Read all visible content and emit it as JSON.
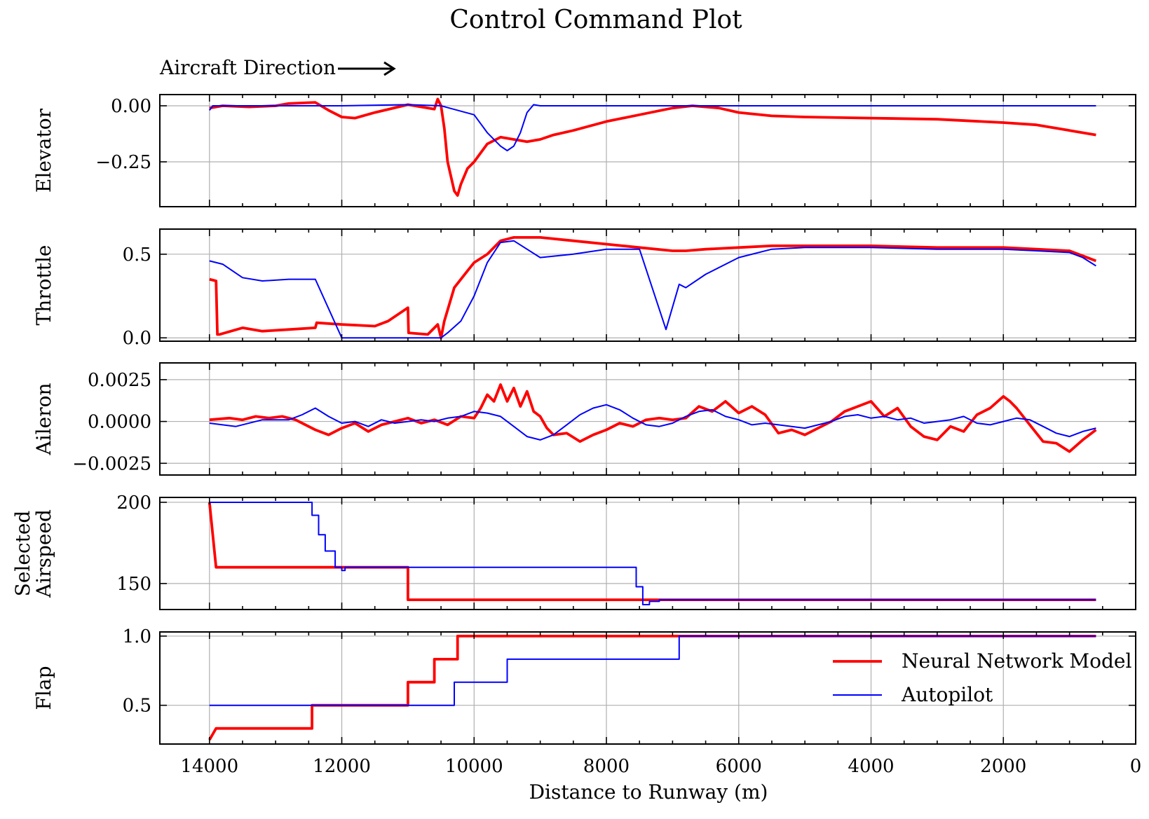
{
  "title": "Control Command Plot",
  "annotation": {
    "text": "Aircraft Direction",
    "arrow": "right-arrow"
  },
  "xlabel": "Distance to Runway (m)",
  "x_ticks": [
    14000,
    12000,
    10000,
    8000,
    6000,
    4000,
    2000,
    0
  ],
  "x_range": [
    14750,
    0
  ],
  "legend": {
    "placement": "lower-right of last panel",
    "entries": [
      {
        "name": "Neural Network Model",
        "color": "#ff0000"
      },
      {
        "name": "Autopilot",
        "color": "#0000ff"
      }
    ]
  },
  "chart_data": [
    {
      "type": "line",
      "ylabel": "Elevator",
      "ylim": [
        -0.45,
        0.05
      ],
      "y_ticks": [
        0.0,
        -0.25
      ],
      "y_tick_labels": [
        "0.00",
        "−0.25"
      ],
      "grid": true,
      "series": [
        {
          "name": "Neural Network Model",
          "color": "#ff0000",
          "x": [
            14000,
            13800,
            13400,
            13000,
            12800,
            12400,
            12200,
            12000,
            11800,
            11500,
            11000,
            10600,
            10550,
            10500,
            10450,
            10400,
            10300,
            10250,
            10200,
            10100,
            10000,
            9800,
            9600,
            9400,
            9200,
            9000,
            8800,
            8500,
            8000,
            7500,
            7000,
            6700,
            6500,
            6300,
            6000,
            5500,
            5000,
            4000,
            3000,
            2000,
            1500,
            1000,
            600
          ],
          "y": [
            -0.01,
            0.0,
            -0.005,
            0.0,
            0.01,
            0.015,
            -0.02,
            -0.05,
            -0.055,
            -0.03,
            0.005,
            -0.015,
            0.03,
            0.0,
            -0.1,
            -0.25,
            -0.38,
            -0.4,
            -0.35,
            -0.28,
            -0.25,
            -0.17,
            -0.14,
            -0.15,
            -0.16,
            -0.15,
            -0.13,
            -0.11,
            -0.07,
            -0.04,
            -0.01,
            0.0,
            -0.005,
            -0.01,
            -0.03,
            -0.045,
            -0.05,
            -0.055,
            -0.06,
            -0.075,
            -0.085,
            -0.11,
            -0.13
          ]
        },
        {
          "name": "Autopilot",
          "color": "#0000ff",
          "x": [
            14000,
            13950,
            13800,
            13000,
            12000,
            11000,
            10500,
            10000,
            9800,
            9600,
            9500,
            9400,
            9300,
            9200,
            9100,
            9000,
            8000,
            7000,
            6000,
            5000,
            4000,
            3000,
            2000,
            1000,
            600
          ],
          "y": [
            -0.02,
            0.0,
            0.0,
            0.0,
            0.0,
            0.005,
            0.0,
            -0.04,
            -0.12,
            -0.18,
            -0.2,
            -0.18,
            -0.12,
            -0.03,
            0.005,
            0.0,
            0.0,
            0.0,
            0.0,
            0.0,
            0.0,
            0.0,
            0.0,
            0.0,
            0.0
          ]
        }
      ]
    },
    {
      "type": "line",
      "ylabel": "Throttle",
      "ylim": [
        -0.02,
        0.65
      ],
      "y_ticks": [
        0.0,
        0.5
      ],
      "y_tick_labels": [
        "0.0",
        "0.5"
      ],
      "grid": true,
      "series": [
        {
          "name": "Neural Network Model",
          "color": "#ff0000",
          "x": [
            14000,
            13900,
            13880,
            13850,
            13500,
            13200,
            12800,
            12400,
            12380,
            12000,
            11500,
            11300,
            11000,
            10990,
            10700,
            10550,
            10500,
            10450,
            10300,
            10100,
            10000,
            9800,
            9600,
            9400,
            9000,
            8500,
            8000,
            7500,
            7000,
            6800,
            6500,
            6000,
            5500,
            5000,
            4000,
            3000,
            2000,
            1500,
            1000,
            800,
            600
          ],
          "y": [
            0.35,
            0.34,
            0.02,
            0.02,
            0.06,
            0.04,
            0.05,
            0.06,
            0.09,
            0.08,
            0.07,
            0.1,
            0.18,
            0.03,
            0.02,
            0.08,
            0.0,
            0.1,
            0.3,
            0.4,
            0.45,
            0.5,
            0.58,
            0.6,
            0.6,
            0.58,
            0.56,
            0.54,
            0.52,
            0.52,
            0.53,
            0.54,
            0.55,
            0.55,
            0.55,
            0.54,
            0.54,
            0.53,
            0.52,
            0.49,
            0.46
          ]
        },
        {
          "name": "Autopilot",
          "color": "#0000ff",
          "x": [
            14000,
            13800,
            13500,
            13200,
            12800,
            12400,
            12000,
            11000,
            10500,
            10400,
            10200,
            10000,
            9800,
            9600,
            9400,
            9000,
            8500,
            8000,
            7500,
            7100,
            6900,
            6800,
            6500,
            6000,
            5500,
            5000,
            4000,
            3000,
            2000,
            1500,
            1000,
            800,
            600
          ],
          "y": [
            0.46,
            0.44,
            0.36,
            0.34,
            0.35,
            0.35,
            0.0,
            0.0,
            0.0,
            0.03,
            0.1,
            0.25,
            0.45,
            0.57,
            0.58,
            0.48,
            0.5,
            0.53,
            0.53,
            0.05,
            0.32,
            0.3,
            0.38,
            0.48,
            0.53,
            0.54,
            0.54,
            0.53,
            0.53,
            0.52,
            0.51,
            0.48,
            0.43
          ]
        }
      ]
    },
    {
      "type": "line",
      "ylabel": "Aileron",
      "ylim": [
        -0.0032,
        0.0035
      ],
      "y_ticks": [
        0.0025,
        0.0,
        -0.0025
      ],
      "y_tick_labels": [
        "0.0025",
        "0.0000",
        "−0.0025"
      ],
      "grid": true,
      "series": [
        {
          "name": "Neural Network Model",
          "color": "#ff0000",
          "x": [
            14000,
            13700,
            13500,
            13300,
            13100,
            12900,
            12700,
            12400,
            12200,
            12000,
            11800,
            11600,
            11400,
            11200,
            11000,
            10800,
            10600,
            10400,
            10200,
            10000,
            9900,
            9800,
            9700,
            9600,
            9500,
            9400,
            9300,
            9200,
            9100,
            9000,
            8900,
            8800,
            8600,
            8400,
            8200,
            8000,
            7800,
            7600,
            7400,
            7200,
            7000,
            6800,
            6600,
            6400,
            6200,
            6000,
            5800,
            5600,
            5400,
            5200,
            5000,
            4800,
            4600,
            4400,
            4200,
            4000,
            3800,
            3600,
            3400,
            3200,
            3000,
            2800,
            2600,
            2400,
            2200,
            2000,
            1900,
            1800,
            1600,
            1400,
            1200,
            1000,
            800,
            600
          ],
          "y": [
            0.0001,
            0.0002,
            0.0001,
            0.0003,
            0.0002,
            0.0003,
            0.0001,
            -0.0005,
            -0.0008,
            -0.0004,
            -0.0001,
            -0.0006,
            -0.0002,
            0.0,
            0.0002,
            -0.0001,
            0.0001,
            -0.0002,
            0.0003,
            0.0002,
            0.0008,
            0.0016,
            0.0012,
            0.0022,
            0.0012,
            0.002,
            0.0009,
            0.0018,
            0.0006,
            0.0003,
            -0.0004,
            -0.0008,
            -0.0007,
            -0.0012,
            -0.0008,
            -0.0005,
            -0.0001,
            -0.0003,
            0.0001,
            0.0002,
            0.0001,
            0.0002,
            0.0009,
            0.0006,
            0.0012,
            0.0005,
            0.0009,
            0.0004,
            -0.0007,
            -0.0005,
            -0.0008,
            -0.0004,
            0.0,
            0.0006,
            0.0009,
            0.0012,
            0.0003,
            0.0008,
            -0.0003,
            -0.0009,
            -0.0011,
            -0.0003,
            -0.0006,
            0.0004,
            0.0008,
            0.0015,
            0.0012,
            0.0008,
            -0.0002,
            -0.0012,
            -0.0013,
            -0.0018,
            -0.0011,
            -0.0005
          ]
        },
        {
          "name": "Autopilot",
          "color": "#0000ff",
          "x": [
            14000,
            13600,
            13200,
            12800,
            12600,
            12400,
            12200,
            12000,
            11800,
            11600,
            11400,
            11200,
            11000,
            10800,
            10600,
            10400,
            10200,
            10000,
            9800,
            9600,
            9400,
            9200,
            9000,
            8800,
            8600,
            8400,
            8200,
            8000,
            7800,
            7600,
            7400,
            7200,
            7000,
            6800,
            6600,
            6400,
            6200,
            6000,
            5800,
            5600,
            5400,
            5200,
            5000,
            4800,
            4600,
            4400,
            4200,
            4000,
            3800,
            3600,
            3400,
            3200,
            3000,
            2800,
            2600,
            2400,
            2200,
            2000,
            1800,
            1600,
            1400,
            1200,
            1000,
            800,
            600
          ],
          "y": [
            -0.0001,
            -0.0003,
            0.0001,
            0.0001,
            0.0004,
            0.0008,
            0.0003,
            -0.0001,
            0.0,
            -0.0003,
            0.0001,
            -0.0001,
            0.0,
            0.0001,
            0.0,
            0.0002,
            0.0003,
            0.0006,
            0.0005,
            0.0003,
            -0.0003,
            -0.0009,
            -0.0011,
            -0.0008,
            -0.0002,
            0.0004,
            0.0008,
            0.001,
            0.0007,
            0.0002,
            -0.0002,
            -0.0003,
            -0.0001,
            0.0003,
            0.0006,
            0.0007,
            0.0003,
            0.0001,
            -0.0002,
            -0.0001,
            -0.0002,
            -0.0003,
            -0.0004,
            -0.0002,
            0.0,
            0.0003,
            0.0004,
            0.0002,
            0.0003,
            0.0001,
            0.0002,
            -0.0001,
            0.0,
            0.0001,
            0.0003,
            -0.0001,
            -0.0002,
            0.0,
            0.0002,
            0.0001,
            -0.0003,
            -0.0007,
            -0.0009,
            -0.0006,
            -0.0004
          ]
        }
      ]
    },
    {
      "type": "line",
      "ylabel": "Selected\nAirspeed",
      "ylim": [
        134,
        203
      ],
      "y_ticks": [
        200,
        150
      ],
      "y_tick_labels": [
        "200",
        "150"
      ],
      "grid": true,
      "series": [
        {
          "name": "Neural Network Model",
          "color": "#ff0000",
          "x": [
            14000,
            13900,
            13900,
            11000,
            11000,
            600
          ],
          "y": [
            200,
            160,
            160,
            160,
            140,
            140
          ]
        },
        {
          "name": "Autopilot",
          "color": "#0000ff",
          "x": [
            14000,
            12450,
            12450,
            12350,
            12350,
            12250,
            12250,
            12100,
            12100,
            12000,
            12000,
            11950,
            11950,
            11000,
            11000,
            7550,
            7550,
            7450,
            7450,
            7350,
            7350,
            7200,
            7200,
            600
          ],
          "y": [
            200,
            200,
            192,
            192,
            180,
            180,
            170,
            170,
            160,
            160,
            158,
            158,
            160,
            160,
            160,
            160,
            148,
            148,
            137,
            137,
            139,
            139,
            140,
            140
          ]
        }
      ]
    },
    {
      "type": "line",
      "ylabel": "Flap",
      "ylim": [
        0.22,
        1.03
      ],
      "y_ticks": [
        1.0,
        0.5
      ],
      "y_tick_labels": [
        "1.0",
        "0.5"
      ],
      "grid": true,
      "series": [
        {
          "name": "Neural Network Model",
          "color": "#ff0000",
          "x": [
            14000,
            13900,
            12450,
            12450,
            11000,
            11000,
            10600,
            10600,
            10250,
            10250,
            600
          ],
          "y": [
            0.25,
            0.333,
            0.333,
            0.5,
            0.5,
            0.667,
            0.667,
            0.833,
            0.833,
            1.0,
            1.0
          ]
        },
        {
          "name": "Autopilot",
          "color": "#0000ff",
          "x": [
            14000,
            10300,
            10300,
            9500,
            9500,
            6900,
            6900,
            600
          ],
          "y": [
            0.5,
            0.5,
            0.667,
            0.667,
            0.833,
            0.833,
            1.0,
            1.0
          ]
        }
      ]
    }
  ]
}
